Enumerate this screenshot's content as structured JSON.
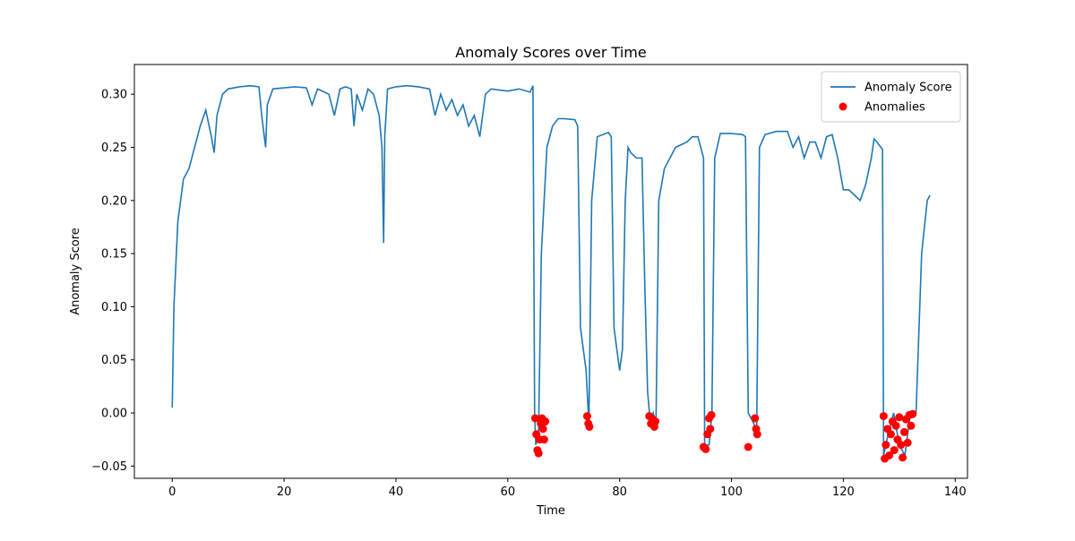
{
  "chart_data": {
    "type": "line",
    "title": "Anomaly Scores over Time",
    "xlabel": "Time",
    "ylabel": "Anomaly Score",
    "xlim": [
      -6.77,
      142.2
    ],
    "ylim": [
      -0.0615,
      0.328
    ],
    "xticks": [
      0,
      20,
      40,
      60,
      80,
      100,
      120,
      140
    ],
    "yticks": [
      {
        "value": -0.05,
        "label": "−0.05"
      },
      {
        "value": 0,
        "label": "0.00"
      },
      {
        "value": 0.05,
        "label": "0.05"
      },
      {
        "value": 0.1,
        "label": "0.10"
      },
      {
        "value": 0.15,
        "label": "0.15"
      },
      {
        "value": 0.2,
        "label": "0.20"
      },
      {
        "value": 0.25,
        "label": "0.25"
      },
      {
        "value": 0.3,
        "label": "0.30"
      }
    ],
    "grid": false,
    "legend": "upper right",
    "series": [
      {
        "name": "Anomaly Score",
        "type": "line",
        "color": "#1f77b4",
        "x": [
          0,
          0.3,
          1,
          2,
          3,
          4,
          5,
          6,
          7,
          7.5,
          8,
          9,
          10,
          12,
          14,
          15.5,
          16,
          16.7,
          17,
          18,
          20,
          22,
          24,
          25,
          26,
          28,
          29,
          30,
          31,
          32,
          32.5,
          33,
          34,
          35,
          36,
          37,
          37.5,
          37.8,
          38,
          38.5,
          40,
          42,
          44,
          46,
          47,
          48,
          49,
          50,
          51,
          52,
          53,
          54,
          55,
          56,
          57,
          60,
          62,
          64,
          64.5,
          64.8,
          65,
          65.5,
          66,
          66.5,
          67,
          68,
          69,
          70,
          72,
          72.5,
          73,
          74,
          74.5,
          75,
          76,
          77,
          78,
          78.5,
          79,
          80,
          80.5,
          81,
          81.5,
          82,
          83,
          84,
          84.5,
          85,
          85.5,
          86,
          86.5,
          87,
          88,
          89,
          90,
          92,
          93,
          94,
          95,
          95.2,
          96,
          96.5,
          97,
          98,
          100,
          102,
          102.5,
          103,
          104,
          104.5,
          105,
          106,
          108,
          110,
          111,
          112,
          113,
          114,
          115,
          116,
          117,
          118,
          119,
          120,
          121,
          122,
          123,
          124,
          125,
          125.5,
          126,
          127,
          127.2,
          128,
          129,
          130,
          131,
          132,
          133,
          134,
          135,
          135.5
        ],
        "values": [
          0.005,
          0.1,
          0.18,
          0.22,
          0.23,
          0.25,
          0.27,
          0.285,
          0.26,
          0.245,
          0.28,
          0.3,
          0.305,
          0.307,
          0.308,
          0.307,
          0.28,
          0.25,
          0.29,
          0.305,
          0.306,
          0.307,
          0.306,
          0.29,
          0.305,
          0.3,
          0.28,
          0.305,
          0.307,
          0.305,
          0.27,
          0.3,
          0.285,
          0.305,
          0.3,
          0.28,
          0.25,
          0.16,
          0.26,
          0.305,
          0.307,
          0.308,
          0.307,
          0.305,
          0.28,
          0.3,
          0.285,
          0.295,
          0.28,
          0.29,
          0.27,
          0.28,
          0.26,
          0.3,
          0.305,
          0.303,
          0.305,
          0.302,
          0.308,
          0.0,
          -0.03,
          -0.02,
          0.15,
          0.2,
          0.25,
          0.27,
          0.277,
          0.277,
          0.276,
          0.27,
          0.08,
          0.04,
          -0.01,
          0.2,
          0.26,
          0.262,
          0.264,
          0.26,
          0.08,
          0.04,
          0.06,
          0.2,
          0.25,
          0.245,
          0.24,
          0.24,
          0.12,
          0.02,
          -0.01,
          0.0,
          -0.01,
          0.2,
          0.23,
          0.24,
          0.25,
          0.255,
          0.26,
          0.26,
          0.24,
          -0.03,
          -0.03,
          0.0,
          0.24,
          0.263,
          0.263,
          0.262,
          0.26,
          0.0,
          -0.01,
          -0.02,
          0.25,
          0.262,
          0.265,
          0.265,
          0.25,
          0.26,
          0.24,
          0.255,
          0.255,
          0.24,
          0.26,
          0.262,
          0.24,
          0.21,
          0.21,
          0.205,
          0.2,
          0.215,
          0.24,
          0.258,
          0.255,
          0.248,
          -0.04,
          -0.02,
          0.0,
          -0.03,
          -0.04,
          0.0,
          0.0,
          0.15,
          0.2,
          0.205
        ]
      },
      {
        "name": "Anomalies",
        "type": "scatter",
        "color": "#ff0000",
        "x": [
          64.9,
          65.1,
          65.3,
          65.5,
          65.7,
          65.9,
          66.1,
          66.3,
          66.5,
          66.7,
          74.2,
          74.4,
          74.6,
          85.3,
          85.6,
          85.9,
          86.2,
          86.4,
          95.0,
          95.4,
          95.7,
          96.0,
          96.2,
          96.4,
          103.0,
          104.2,
          104.4,
          104.6,
          127.2,
          127.4,
          127.6,
          127.9,
          128.2,
          128.5,
          128.8,
          129.1,
          129.4,
          129.7,
          130.0,
          130.3,
          130.6,
          130.9,
          131.2,
          131.5,
          131.8,
          132.1,
          132.4
        ],
        "values": [
          -0.005,
          -0.02,
          -0.035,
          -0.038,
          -0.025,
          -0.01,
          -0.005,
          -0.015,
          -0.025,
          -0.008,
          -0.003,
          -0.01,
          -0.013,
          -0.003,
          -0.01,
          -0.006,
          -0.013,
          -0.008,
          -0.032,
          -0.034,
          -0.02,
          -0.005,
          -0.015,
          -0.002,
          -0.032,
          -0.005,
          -0.015,
          -0.02,
          -0.003,
          -0.043,
          -0.03,
          -0.015,
          -0.04,
          -0.02,
          -0.008,
          -0.035,
          -0.012,
          -0.025,
          -0.004,
          -0.03,
          -0.042,
          -0.018,
          -0.006,
          -0.028,
          -0.002,
          -0.012,
          -0.001
        ]
      }
    ]
  }
}
